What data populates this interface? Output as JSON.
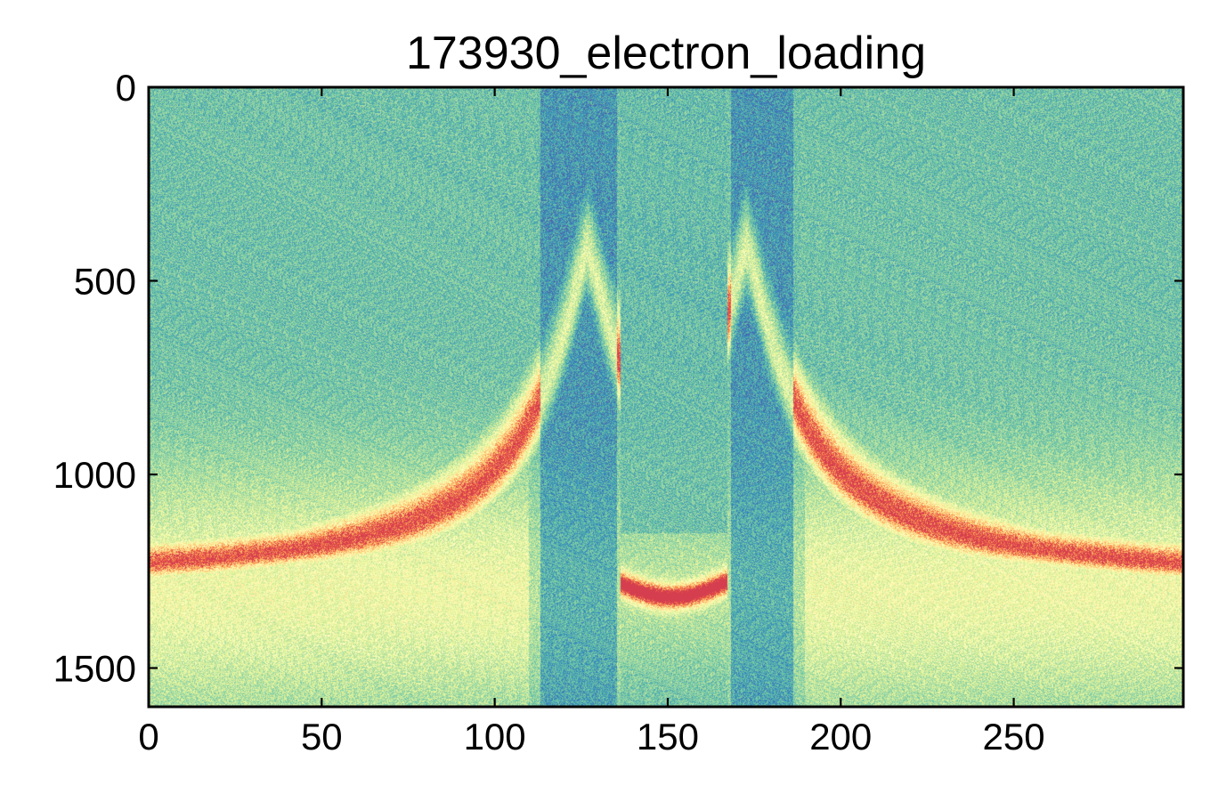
{
  "chart_data": {
    "type": "heatmap",
    "title": "173930_electron_loading",
    "xlabel": "",
    "ylabel": "",
    "xlim": [
      0,
      299
    ],
    "ylim": [
      1600,
      0
    ],
    "y_axis_inverted": true,
    "grid": false,
    "legend": "none",
    "colormap": "Spectral_r",
    "x_ticks": [
      0,
      50,
      100,
      150,
      200,
      250
    ],
    "y_ticks": [
      0,
      500,
      1000,
      1500
    ],
    "x_tick_labels": [
      "0",
      "50",
      "100",
      "150",
      "200",
      "250"
    ],
    "y_tick_labels": [
      "0",
      "500",
      "1000",
      "1500"
    ],
    "colors": {
      "low": "#5e4fa2",
      "mid_low": "#66c2a5",
      "mid": "#e6f598",
      "mid_high": "#fee08b",
      "high": "#d53e4f"
    },
    "features": {
      "left_curve": {
        "description_points": [
          {
            "x": 0,
            "y": 1290
          },
          {
            "x": 50,
            "y": 1250
          },
          {
            "x": 90,
            "y": 1120
          },
          {
            "x": 110,
            "y": 920
          },
          {
            "x": 118,
            "y": 700
          },
          {
            "x": 122,
            "y": 450
          },
          {
            "x": 124,
            "y": 200
          }
        ]
      },
      "right_curve": {
        "description_points": [
          {
            "x": 175,
            "y": 200
          },
          {
            "x": 177,
            "y": 450
          },
          {
            "x": 181,
            "y": 700
          },
          {
            "x": 189,
            "y": 920
          },
          {
            "x": 209,
            "y": 1120
          },
          {
            "x": 249,
            "y": 1250
          },
          {
            "x": 299,
            "y": 1290
          }
        ]
      },
      "center_band": {
        "x_range": [
          136,
          165
        ],
        "points": [
          {
            "x": 136,
            "y": 1280
          },
          {
            "x": 140,
            "y": 1285
          },
          {
            "x": 150,
            "y": 1320
          },
          {
            "x": 160,
            "y": 1285
          },
          {
            "x": 165,
            "y": 1280
          }
        ]
      },
      "dark_gaps": [
        [
          115,
          135
        ],
        [
          168,
          185
        ]
      ]
    }
  }
}
